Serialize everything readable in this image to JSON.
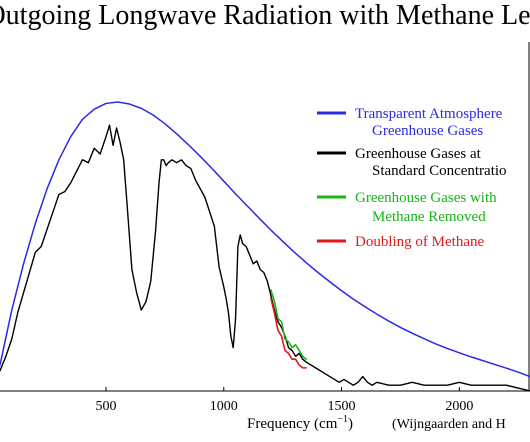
{
  "chart_data": {
    "type": "line",
    "title": "Outgoing Longwave Radiation with Methane Lev",
    "xlabel_main": "Frequency (cm",
    "xlabel_superscript": "−1",
    "xlabel_tail": ")",
    "source": "(Wijngaarden and H",
    "xlim": [
      50,
      2300
    ],
    "ylim": [
      0,
      1.0
    ],
    "x_ticks": [
      500,
      1000,
      1500,
      2000
    ],
    "x_tick_labels": [
      "500",
      "1000",
      "1500",
      "2000"
    ],
    "legend_position": "top-right",
    "grid": false,
    "series": [
      {
        "name": "Transparent Atmosphere",
        "name_line2": "Greenhouse Gases",
        "color": "#2a2ae8",
        "x": [
          50,
          100,
          150,
          200,
          250,
          300,
          350,
          400,
          450,
          500,
          550,
          600,
          650,
          700,
          750,
          800,
          850,
          900,
          950,
          1000,
          1050,
          1100,
          1150,
          1200,
          1250,
          1300,
          1350,
          1400,
          1450,
          1500,
          1550,
          1600,
          1650,
          1700,
          1750,
          1800,
          1850,
          1900,
          1950,
          2000,
          2050,
          2100,
          2150,
          2200,
          2250,
          2300
        ],
        "y": [
          0.09,
          0.28,
          0.44,
          0.58,
          0.7,
          0.8,
          0.88,
          0.94,
          0.975,
          0.995,
          1.0,
          0.993,
          0.978,
          0.955,
          0.925,
          0.89,
          0.852,
          0.812,
          0.77,
          0.726,
          0.682,
          0.64,
          0.598,
          0.557,
          0.518,
          0.48,
          0.444,
          0.41,
          0.378,
          0.347,
          0.318,
          0.291,
          0.266,
          0.242,
          0.22,
          0.2,
          0.181,
          0.163,
          0.147,
          0.132,
          0.118,
          0.105,
          0.092,
          0.079,
          0.065,
          0.05
        ]
      },
      {
        "name": "Greenhouse Gases at",
        "name_line2": "Standard Concentratio",
        "color": "#000000",
        "x": [
          50,
          75,
          100,
          125,
          150,
          175,
          200,
          225,
          250,
          275,
          300,
          325,
          350,
          375,
          400,
          425,
          450,
          475,
          500,
          515,
          530,
          545,
          560,
          575,
          590,
          610,
          630,
          650,
          670,
          690,
          710,
          725,
          735,
          745,
          755,
          765,
          780,
          800,
          820,
          840,
          860,
          880,
          900,
          920,
          940,
          960,
          980,
          1000,
          1010,
          1020,
          1030,
          1040,
          1050,
          1060,
          1070,
          1080,
          1095,
          1110,
          1125,
          1140,
          1155,
          1170,
          1185,
          1200,
          1215,
          1230,
          1245,
          1260,
          1275,
          1290,
          1305,
          1320,
          1335,
          1350,
          1370,
          1390,
          1410,
          1430,
          1450,
          1470,
          1490,
          1510,
          1530,
          1550,
          1570,
          1590,
          1610,
          1630,
          1650,
          1700,
          1750,
          1800,
          1850,
          1900,
          1950,
          2000,
          2050,
          2100,
          2150,
          2200,
          2250,
          2300
        ],
        "y": [
          0.07,
          0.12,
          0.18,
          0.27,
          0.34,
          0.41,
          0.48,
          0.5,
          0.56,
          0.62,
          0.68,
          0.69,
          0.72,
          0.76,
          0.8,
          0.79,
          0.84,
          0.82,
          0.88,
          0.92,
          0.85,
          0.91,
          0.86,
          0.8,
          0.64,
          0.42,
          0.34,
          0.28,
          0.31,
          0.38,
          0.55,
          0.72,
          0.8,
          0.8,
          0.78,
          0.79,
          0.8,
          0.79,
          0.8,
          0.78,
          0.77,
          0.73,
          0.7,
          0.67,
          0.62,
          0.57,
          0.43,
          0.36,
          0.32,
          0.27,
          0.19,
          0.15,
          0.25,
          0.5,
          0.54,
          0.51,
          0.5,
          0.47,
          0.44,
          0.45,
          0.42,
          0.41,
          0.38,
          0.33,
          0.28,
          0.24,
          0.22,
          0.19,
          0.15,
          0.14,
          0.12,
          0.13,
          0.11,
          0.1,
          0.09,
          0.08,
          0.07,
          0.06,
          0.05,
          0.04,
          0.03,
          0.04,
          0.03,
          0.02,
          0.03,
          0.05,
          0.03,
          0.02,
          0.03,
          0.02,
          0.02,
          0.03,
          0.02,
          0.02,
          0.02,
          0.03,
          0.02,
          0.02,
          0.02,
          0.02,
          0.01,
          0.0
        ]
      },
      {
        "name": "Greenhouse Gases with",
        "name_line2": "Methane Removed",
        "color": "#18b418",
        "x": [
          1200,
          1215,
          1230,
          1245,
          1260,
          1275,
          1290,
          1305,
          1320,
          1335,
          1350
        ],
        "y": [
          0.35,
          0.31,
          0.25,
          0.24,
          0.18,
          0.17,
          0.15,
          0.16,
          0.14,
          0.12,
          0.11
        ]
      },
      {
        "name": "Doubling of Methane",
        "color": "#e01818",
        "x": [
          1200,
          1215,
          1230,
          1245,
          1260,
          1275,
          1290,
          1305,
          1320,
          1335,
          1350
        ],
        "y": [
          0.32,
          0.27,
          0.21,
          0.19,
          0.14,
          0.13,
          0.11,
          0.11,
          0.09,
          0.08,
          0.08
        ]
      }
    ]
  }
}
